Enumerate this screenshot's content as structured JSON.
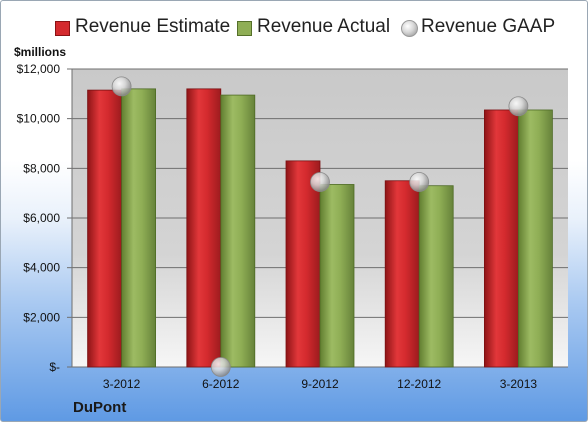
{
  "chart_data": {
    "type": "bar",
    "title": "",
    "unit_label": "$millions",
    "company": "DuPont",
    "categories": [
      "3-2012",
      "6-2012",
      "9-2012",
      "12-2012",
      "3-2013"
    ],
    "series": [
      {
        "name": "Revenue Estimate",
        "kind": "bar",
        "color": "#d42a2e",
        "values": [
          11150,
          11200,
          8300,
          7500,
          10350
        ]
      },
      {
        "name": "Revenue Actual",
        "kind": "bar",
        "color": "#8fae55",
        "values": [
          11200,
          10950,
          7350,
          7300,
          10350
        ]
      },
      {
        "name": "Revenue GAAP",
        "kind": "marker",
        "color": "#c8c8c8",
        "values": [
          11300,
          0,
          7450,
          7450,
          10500
        ]
      }
    ],
    "ylim": [
      0,
      12000
    ],
    "yticks": [
      0,
      2000,
      4000,
      6000,
      8000,
      10000,
      12000
    ],
    "ytick_labels": [
      "$-",
      "$2,000",
      "$4,000",
      "$6,000",
      "$8,000",
      "$10,000",
      "$12,000"
    ],
    "grid": true,
    "legend_position": "top"
  }
}
